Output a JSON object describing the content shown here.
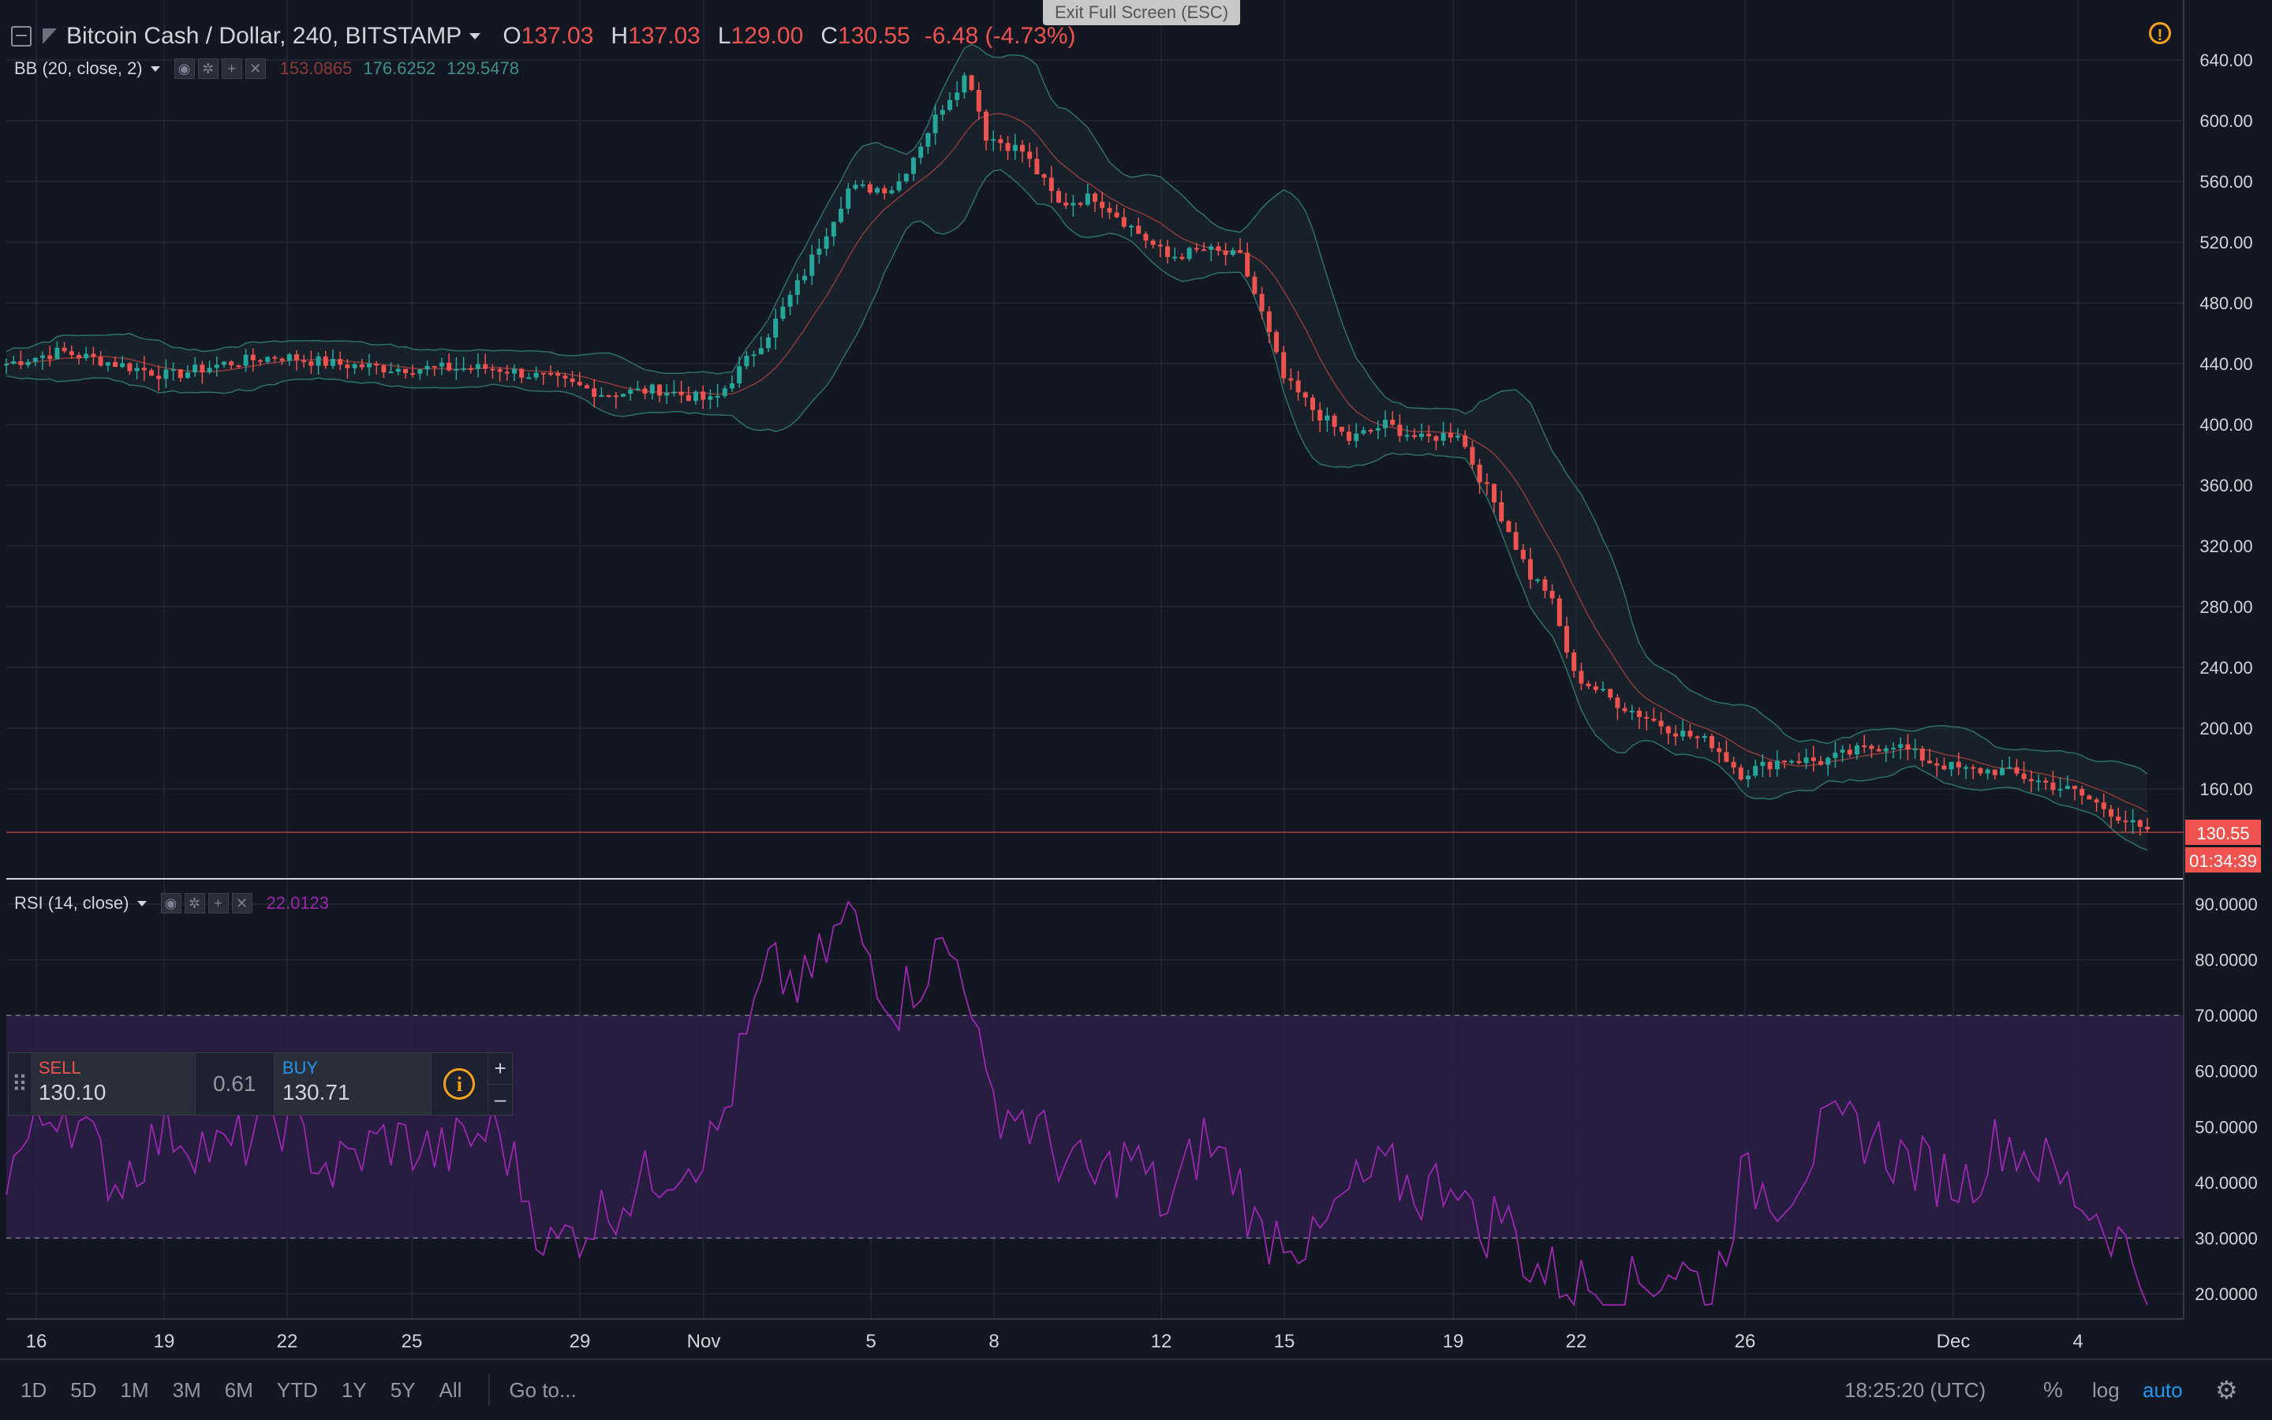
{
  "header": {
    "symbol": "Bitcoin Cash / Dollar, 240, BITSTAMP",
    "ohlc": {
      "o_label": "O",
      "o": "137.03",
      "h_label": "H",
      "h": "137.03",
      "l_label": "L",
      "l": "129.00",
      "c_label": "C",
      "c": "130.55",
      "change": "-6.48 (-4.73%)"
    }
  },
  "exit_fullscreen": "Exit Full Screen (ESC)",
  "bb_legend": {
    "name": "BB (20, close, 2)",
    "basis": "153.0865",
    "upper": "176.6252",
    "lower": "129.5478"
  },
  "rsi_legend": {
    "name": "RSI (14, close)",
    "value": "22.0123"
  },
  "legend_controls": [
    "eye-icon",
    "gear-icon",
    "plus-icon",
    "close-icon"
  ],
  "trade_panel": {
    "sell_label": "SELL",
    "sell_price": "130.10",
    "spread": "0.61",
    "buy_label": "BUY",
    "buy_price": "130.71",
    "plus": "+",
    "minus": "–"
  },
  "price_axis_labels": [
    "640.00",
    "600.00",
    "560.00",
    "520.00",
    "480.00",
    "440.00",
    "400.00",
    "360.00",
    "320.00",
    "280.00",
    "240.00",
    "200.00",
    "160.00"
  ],
  "rsi_axis_labels": [
    "90.0000",
    "80.0000",
    "70.0000",
    "60.0000",
    "50.0000",
    "40.0000",
    "30.0000",
    "20.0000"
  ],
  "last_price_badge": "130.55",
  "countdown_badge": "01:34:39",
  "time_axis_labels": [
    "16",
    "19",
    "22",
    "25",
    "29",
    "Nov",
    "5",
    "8",
    "12",
    "15",
    "19",
    "22",
    "26",
    "Dec",
    "4"
  ],
  "bottom_toolbar": {
    "timeframes": [
      "1D",
      "5D",
      "1M",
      "3M",
      "6M",
      "YTD",
      "1Y",
      "5Y",
      "All"
    ],
    "goto": "Go to...",
    "clock": "18:25:20 (UTC)",
    "percent": "%",
    "log": "log",
    "auto": "auto"
  },
  "colors": {
    "background": "#131722",
    "up": "#26a69a",
    "down": "#ef5350",
    "rsi": "#9c27b0",
    "rsi_band": "#2a1f47",
    "bb": "#2e6f6a",
    "basis": "#8b3a3a"
  },
  "chart_data": [
    {
      "type": "candlestick",
      "title": "Bitcoin Cash / Dollar, 240, BITSTAMP",
      "ylim": [
        130,
        640
      ],
      "x_ticks": [
        "16",
        "19",
        "22",
        "25",
        "29",
        "Nov",
        "5",
        "8",
        "12",
        "15",
        "19",
        "22",
        "26",
        "Dec",
        "4"
      ],
      "approx_close_path": [
        [
          0,
          440
        ],
        [
          15,
          448
        ],
        [
          30,
          440
        ],
        [
          45,
          432
        ],
        [
          60,
          440
        ],
        [
          75,
          445
        ],
        [
          90,
          440
        ],
        [
          105,
          437
        ],
        [
          120,
          437
        ],
        [
          135,
          437
        ],
        [
          150,
          430
        ],
        [
          165,
          420
        ],
        [
          180,
          423
        ],
        [
          195,
          415
        ],
        [
          210,
          460
        ],
        [
          220,
          500
        ],
        [
          232,
          555
        ],
        [
          245,
          556
        ],
        [
          258,
          610
        ],
        [
          265,
          632
        ],
        [
          270,
          590
        ],
        [
          280,
          580
        ],
        [
          290,
          545
        ],
        [
          300,
          550
        ],
        [
          310,
          530
        ],
        [
          320,
          510
        ],
        [
          330,
          515
        ],
        [
          340,
          510
        ],
        [
          345,
          480
        ],
        [
          352,
          430
        ],
        [
          360,
          410
        ],
        [
          370,
          390
        ],
        [
          380,
          400
        ],
        [
          390,
          390
        ],
        [
          400,
          395
        ],
        [
          405,
          370
        ],
        [
          412,
          340
        ],
        [
          420,
          300
        ],
        [
          425,
          290
        ],
        [
          432,
          235
        ],
        [
          445,
          215
        ],
        [
          460,
          198
        ],
        [
          470,
          190
        ],
        [
          478,
          170
        ],
        [
          490,
          180
        ],
        [
          500,
          178
        ],
        [
          510,
          185
        ],
        [
          520,
          190
        ],
        [
          530,
          178
        ],
        [
          540,
          172
        ],
        [
          550,
          172
        ],
        [
          560,
          165
        ],
        [
          570,
          158
        ],
        [
          580,
          145
        ],
        [
          590,
          130
        ]
      ]
    },
    {
      "type": "line",
      "title": "RSI (14, close)",
      "ylim": [
        15,
        95
      ],
      "bands": [
        30,
        70
      ],
      "approx_path": [
        [
          0,
          42
        ],
        [
          15,
          55
        ],
        [
          30,
          40
        ],
        [
          45,
          50
        ],
        [
          60,
          45
        ],
        [
          75,
          52
        ],
        [
          90,
          42
        ],
        [
          105,
          48
        ],
        [
          120,
          45
        ],
        [
          135,
          50
        ],
        [
          150,
          28
        ],
        [
          165,
          35
        ],
        [
          180,
          42
        ],
        [
          195,
          47
        ],
        [
          210,
          78
        ],
        [
          220,
          75
        ],
        [
          232,
          88
        ],
        [
          245,
          72
        ],
        [
          258,
          82
        ],
        [
          265,
          78
        ],
        [
          270,
          55
        ],
        [
          280,
          52
        ],
        [
          290,
          45
        ],
        [
          300,
          40
        ],
        [
          310,
          45
        ],
        [
          320,
          35
        ],
        [
          330,
          48
        ],
        [
          340,
          40
        ],
        [
          345,
          30
        ],
        [
          352,
          32
        ],
        [
          360,
          28
        ],
        [
          370,
          38
        ],
        [
          380,
          42
        ],
        [
          390,
          38
        ],
        [
          400,
          42
        ],
        [
          405,
          30
        ],
        [
          412,
          35
        ],
        [
          420,
          25
        ],
        [
          432,
          22
        ],
        [
          445,
          20
        ],
        [
          460,
          25
        ],
        [
          470,
          20
        ],
        [
          478,
          40
        ],
        [
          490,
          38
        ],
        [
          500,
          48
        ],
        [
          510,
          50
        ],
        [
          520,
          45
        ],
        [
          530,
          42
        ],
        [
          540,
          40
        ],
        [
          550,
          48
        ],
        [
          560,
          44
        ],
        [
          570,
          38
        ],
        [
          580,
          32
        ],
        [
          590,
          22
        ]
      ]
    }
  ]
}
